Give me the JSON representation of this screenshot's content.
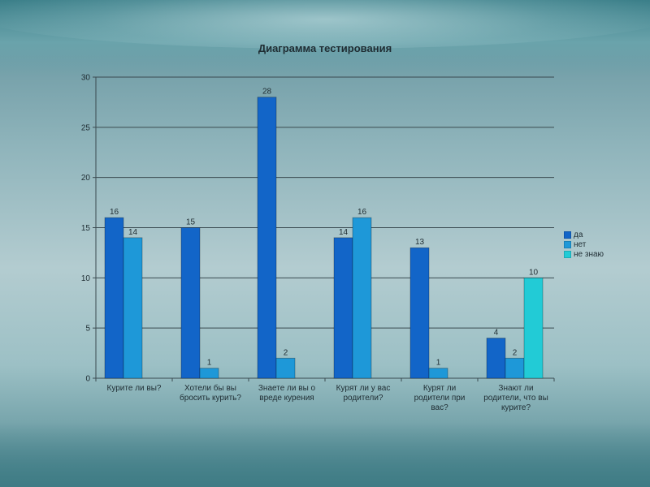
{
  "chart_data": {
    "type": "bar",
    "title": "Диаграмма тестирования",
    "categories": [
      [
        "Курите ли вы?"
      ],
      [
        "Хотели бы вы",
        "бросить курить?"
      ],
      [
        "Знаете ли вы о",
        "вреде курения"
      ],
      [
        "Курят ли у вас",
        "родители?"
      ],
      [
        "Курят ли",
        "родители при",
        "вас?"
      ],
      [
        "Знают ли",
        "родители, что вы",
        "курите?"
      ]
    ],
    "series": [
      {
        "name": "да",
        "color": "#1265c8",
        "values": [
          16,
          15,
          28,
          14,
          13,
          4
        ]
      },
      {
        "name": "нет",
        "color": "#1e98d8",
        "values": [
          14,
          1,
          2,
          16,
          1,
          2
        ]
      },
      {
        "name": "не знаю",
        "color": "#22cbd6",
        "values": [
          null,
          null,
          null,
          null,
          null,
          10
        ]
      }
    ],
    "data_labels": [
      [
        "16",
        "15",
        "28",
        "14",
        "13",
        "4"
      ],
      [
        "14",
        "1",
        "2",
        "16",
        "1",
        "2"
      ],
      [
        "",
        "",
        "",
        "",
        "",
        "10"
      ]
    ],
    "y_ticks": [
      "0",
      "5",
      "10",
      "15",
      "20",
      "25",
      "30"
    ],
    "ylim": [
      0,
      30
    ],
    "grid": true,
    "legend_position": "right"
  }
}
